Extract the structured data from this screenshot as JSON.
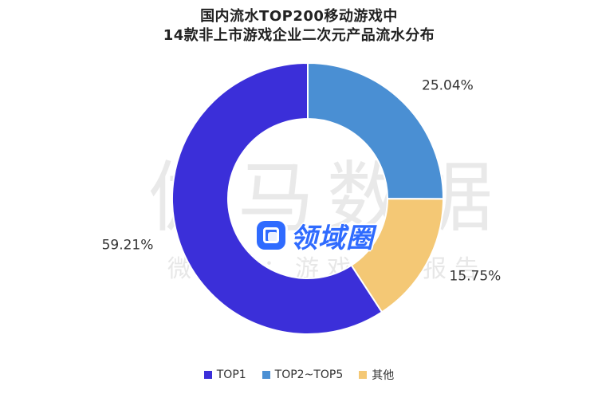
{
  "chart_data": {
    "type": "pie",
    "title": "国内流水TOP200移动游戏中",
    "subtitle": "14款非上市游戏企业二次元产品流水分布",
    "labels": [
      "TOP1",
      "TOP2~TOP5",
      "其他"
    ],
    "values": [
      59.21,
      25.04,
      15.75
    ],
    "value_labels": [
      "59.21%",
      "25.04%",
      "15.75%"
    ],
    "colors": [
      "#3b2fd9",
      "#4a8fd3",
      "#f4c875"
    ],
    "legend_position": "bottom",
    "donut": true
  },
  "watermark": {
    "main": "伽马数据",
    "sub": "微信号：游戏产业报告"
  },
  "logo": {
    "text": "领域圈",
    "icon": "square-logo-icon"
  }
}
